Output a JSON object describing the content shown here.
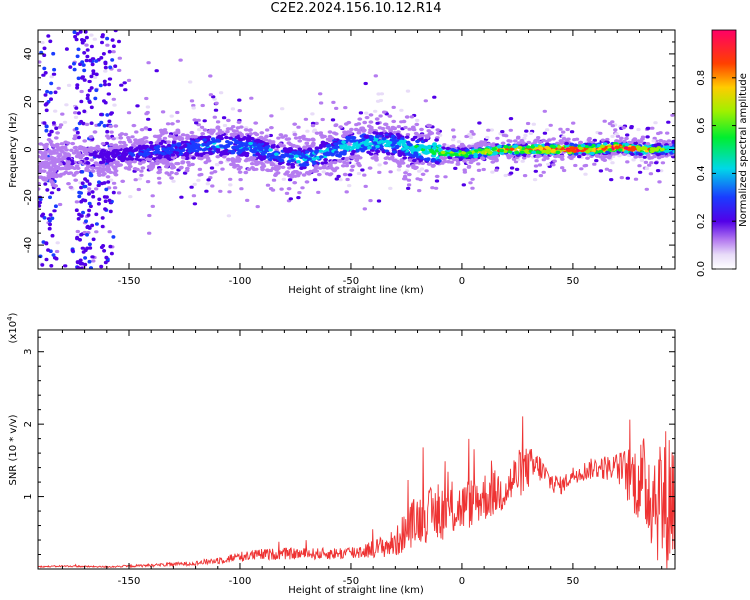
{
  "title": "C2E2.2024.156.10.12.R14",
  "colors": {
    "series": "#ee3333",
    "axis": "#000000"
  },
  "chart_data": [
    {
      "type": "heatmap",
      "xlabel": "Height of straight line (km)",
      "ylabel": "Frequency (Hz)",
      "xlim": [
        -191,
        96
      ],
      "ylim": [
        -50,
        50
      ],
      "xticks": [
        -150,
        -100,
        -50,
        0,
        50
      ],
      "xtick_labels": [
        "-150",
        "-100",
        "-50",
        "0",
        "50"
      ],
      "yticks": [
        -40,
        -20,
        0,
        20,
        40
      ],
      "ytick_labels": [
        "-40",
        "-20",
        "0",
        "20",
        "40"
      ],
      "colorbar": {
        "label": "Normalized spectral amplitude",
        "range": [
          0,
          1
        ],
        "ticks": [
          0.0,
          0.2,
          0.4,
          0.6,
          0.8
        ],
        "tick_labels": [
          "0.0",
          "0.2",
          "0.4",
          "0.6",
          "0.8"
        ]
      },
      "ridge": {
        "x": [
          -188,
          -175,
          -165,
          -150,
          -130,
          -110,
          -95,
          -80,
          -70,
          -60,
          -50,
          -40,
          -30,
          -20,
          -10,
          0,
          10,
          20,
          30,
          40,
          50,
          60,
          70,
          80,
          95
        ],
        "freq": [
          -6,
          -5,
          -3,
          -2,
          0,
          2,
          1,
          -3,
          -4,
          -1,
          2,
          3,
          2,
          0,
          -1,
          -2,
          -1,
          0,
          0,
          0,
          0,
          0,
          1,
          0,
          0
        ],
        "amplitude": [
          0.1,
          0.12,
          0.15,
          0.2,
          0.25,
          0.3,
          0.3,
          0.3,
          0.35,
          0.35,
          0.35,
          0.35,
          0.35,
          0.4,
          0.5,
          0.6,
          0.7,
          0.75,
          0.85,
          0.9,
          0.9,
          0.9,
          0.85,
          0.85,
          0.4
        ]
      }
    },
    {
      "type": "line",
      "xlabel": "Height of straight line (km)",
      "ylabel": "SNR (10 * v/v)",
      "yscale_label": "(x10",
      "yscale_exp": "4",
      "yscale_close": ")",
      "xlim": [
        -191,
        96
      ],
      "ylim": [
        0,
        3.3
      ],
      "xticks": [
        -150,
        -100,
        -50,
        0,
        50
      ],
      "xtick_labels": [
        "-150",
        "-100",
        "-50",
        "0",
        "50"
      ],
      "yticks": [
        1,
        2,
        3
      ],
      "ytick_labels": [
        "1",
        "2",
        "3"
      ],
      "series": [
        {
          "x": [
            -191,
            -180,
            -160,
            -140,
            -120,
            -110,
            -100,
            -90,
            -80,
            -70,
            -60,
            -50,
            -40,
            -30,
            -25,
            -20,
            -10,
            0,
            10,
            20,
            25,
            30,
            35,
            40,
            45,
            50,
            60,
            70,
            75,
            80,
            85,
            88,
            90,
            92,
            95
          ],
          "y": [
            0.03,
            0.04,
            0.03,
            0.05,
            0.08,
            0.12,
            0.17,
            0.2,
            0.21,
            0.21,
            0.21,
            0.22,
            0.28,
            0.35,
            0.55,
            0.7,
            0.78,
            0.85,
            1.0,
            1.1,
            1.3,
            1.4,
            1.4,
            1.2,
            1.15,
            1.3,
            1.4,
            1.4,
            1.3,
            1.2,
            1.1,
            1.0,
            0.9,
            0.9,
            1.05
          ],
          "noise": [
            0.01,
            0.01,
            0.01,
            0.02,
            0.03,
            0.05,
            0.07,
            0.08,
            0.08,
            0.08,
            0.08,
            0.1,
            0.12,
            0.2,
            0.3,
            0.35,
            0.4,
            0.35,
            0.35,
            0.3,
            0.35,
            0.3,
            0.2,
            0.15,
            0.12,
            0.12,
            0.15,
            0.2,
            0.4,
            0.6,
            0.8,
            0.9,
            1.0,
            1.1,
            1.1
          ]
        }
      ]
    }
  ]
}
